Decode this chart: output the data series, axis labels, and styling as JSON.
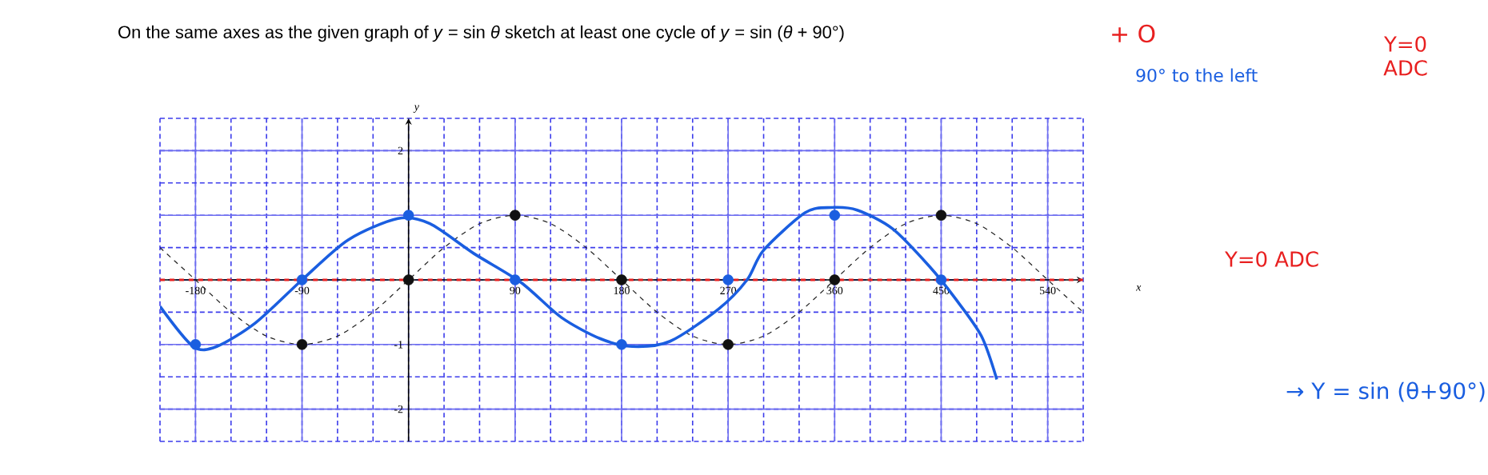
{
  "chart_data": {
    "type": "line",
    "title": "On the same axes as the given graph of *y* = sin *θ* sketch at least one cycle of *y* = sin (*θ* + 90°)",
    "xlabel": "x",
    "ylabel": "y",
    "xlim": [
      -210,
      570
    ],
    "ylim": [
      -2.5,
      2.5
    ],
    "xticks": [
      -180,
      -90,
      90,
      180,
      270,
      360,
      450,
      540
    ],
    "yticks": [
      -2,
      -1,
      {
        "value": 1,
        "label": null
      },
      2
    ],
    "grid": true,
    "line_style": "solid",
    "marker": "none",
    "series": [
      {
        "type": "line",
        "line_style": "dashed",
        "color": "#222222",
        "x": [
          -210,
          -180,
          -150,
          -120,
          -90,
          -60,
          -30,
          0,
          30,
          60,
          90,
          120,
          150,
          180,
          210,
          240,
          270,
          300,
          330,
          360,
          390,
          420,
          450,
          480,
          510,
          540,
          570
        ],
        "values": [
          0.5,
          0,
          -0.5,
          -0.87,
          -1,
          -0.87,
          -0.5,
          0,
          0.5,
          0.87,
          1,
          0.87,
          0.5,
          0,
          -0.5,
          -0.87,
          -1,
          -0.87,
          -0.5,
          0,
          0.5,
          0.87,
          1,
          0.87,
          0.5,
          0,
          -0.5
        ]
      },
      {
        "type": "line",
        "color": "#1a5ee0",
        "x": [
          -210,
          -182,
          -162,
          -129,
          -90,
          -51,
          -9,
          18,
          55,
          95,
          129,
          162,
          189,
          221,
          262,
          286,
          300,
          335,
          357,
          379,
          409,
          440,
          462,
          484,
          497
        ],
        "values": [
          -0.41,
          -1.03,
          -1.03,
          -0.66,
          0,
          0.62,
          0.95,
          0.87,
          0.41,
          -0.04,
          -0.58,
          -0.91,
          -1.03,
          -0.95,
          -0.45,
          0,
          0.46,
          1.04,
          1.12,
          1.08,
          0.79,
          0.21,
          -0.29,
          -0.87,
          -1.54
        ]
      },
      {
        "type": "scatter",
        "marker": "circle",
        "color": "#111111",
        "x": [
          -90,
          0,
          90,
          180,
          270,
          360,
          450
        ],
        "values": [
          -1,
          0,
          1,
          0,
          -1,
          0,
          1
        ]
      },
      {
        "type": "scatter",
        "marker": "circle",
        "color": "#1a5ee0",
        "x": [
          -180,
          -90,
          0,
          90,
          180,
          270,
          360,
          450
        ],
        "values": [
          -1,
          0,
          1,
          0,
          -1,
          0,
          1,
          0
        ]
      }
    ],
    "ref_lines": [
      {
        "axis": "y",
        "value": 0,
        "label": "Y=0 ADC",
        "color": "#e82020",
        "line_style": "dashed"
      }
    ],
    "annotations": [
      "+ O",
      "90° to the left",
      "Y=0 ADC",
      "→ Y = sin (θ+90°)"
    ]
  }
}
